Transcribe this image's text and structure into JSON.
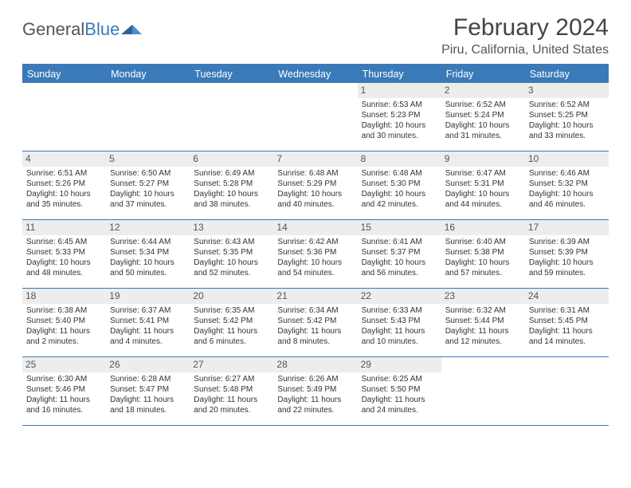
{
  "logo": {
    "text1": "General",
    "text2": "Blue"
  },
  "title": "February 2024",
  "subtitle": "Piru, California, United States",
  "colors": {
    "accent": "#3a7ab8",
    "daynum_bg": "#ededed",
    "text": "#333333"
  },
  "days_of_week": [
    "Sunday",
    "Monday",
    "Tuesday",
    "Wednesday",
    "Thursday",
    "Friday",
    "Saturday"
  ],
  "weeks": [
    [
      null,
      null,
      null,
      null,
      {
        "n": "1",
        "sr": "Sunrise: 6:53 AM",
        "ss": "Sunset: 5:23 PM",
        "d1": "Daylight: 10 hours",
        "d2": "and 30 minutes."
      },
      {
        "n": "2",
        "sr": "Sunrise: 6:52 AM",
        "ss": "Sunset: 5:24 PM",
        "d1": "Daylight: 10 hours",
        "d2": "and 31 minutes."
      },
      {
        "n": "3",
        "sr": "Sunrise: 6:52 AM",
        "ss": "Sunset: 5:25 PM",
        "d1": "Daylight: 10 hours",
        "d2": "and 33 minutes."
      }
    ],
    [
      {
        "n": "4",
        "sr": "Sunrise: 6:51 AM",
        "ss": "Sunset: 5:26 PM",
        "d1": "Daylight: 10 hours",
        "d2": "and 35 minutes."
      },
      {
        "n": "5",
        "sr": "Sunrise: 6:50 AM",
        "ss": "Sunset: 5:27 PM",
        "d1": "Daylight: 10 hours",
        "d2": "and 37 minutes."
      },
      {
        "n": "6",
        "sr": "Sunrise: 6:49 AM",
        "ss": "Sunset: 5:28 PM",
        "d1": "Daylight: 10 hours",
        "d2": "and 38 minutes."
      },
      {
        "n": "7",
        "sr": "Sunrise: 6:48 AM",
        "ss": "Sunset: 5:29 PM",
        "d1": "Daylight: 10 hours",
        "d2": "and 40 minutes."
      },
      {
        "n": "8",
        "sr": "Sunrise: 6:48 AM",
        "ss": "Sunset: 5:30 PM",
        "d1": "Daylight: 10 hours",
        "d2": "and 42 minutes."
      },
      {
        "n": "9",
        "sr": "Sunrise: 6:47 AM",
        "ss": "Sunset: 5:31 PM",
        "d1": "Daylight: 10 hours",
        "d2": "and 44 minutes."
      },
      {
        "n": "10",
        "sr": "Sunrise: 6:46 AM",
        "ss": "Sunset: 5:32 PM",
        "d1": "Daylight: 10 hours",
        "d2": "and 46 minutes."
      }
    ],
    [
      {
        "n": "11",
        "sr": "Sunrise: 6:45 AM",
        "ss": "Sunset: 5:33 PM",
        "d1": "Daylight: 10 hours",
        "d2": "and 48 minutes."
      },
      {
        "n": "12",
        "sr": "Sunrise: 6:44 AM",
        "ss": "Sunset: 5:34 PM",
        "d1": "Daylight: 10 hours",
        "d2": "and 50 minutes."
      },
      {
        "n": "13",
        "sr": "Sunrise: 6:43 AM",
        "ss": "Sunset: 5:35 PM",
        "d1": "Daylight: 10 hours",
        "d2": "and 52 minutes."
      },
      {
        "n": "14",
        "sr": "Sunrise: 6:42 AM",
        "ss": "Sunset: 5:36 PM",
        "d1": "Daylight: 10 hours",
        "d2": "and 54 minutes."
      },
      {
        "n": "15",
        "sr": "Sunrise: 6:41 AM",
        "ss": "Sunset: 5:37 PM",
        "d1": "Daylight: 10 hours",
        "d2": "and 56 minutes."
      },
      {
        "n": "16",
        "sr": "Sunrise: 6:40 AM",
        "ss": "Sunset: 5:38 PM",
        "d1": "Daylight: 10 hours",
        "d2": "and 57 minutes."
      },
      {
        "n": "17",
        "sr": "Sunrise: 6:39 AM",
        "ss": "Sunset: 5:39 PM",
        "d1": "Daylight: 10 hours",
        "d2": "and 59 minutes."
      }
    ],
    [
      {
        "n": "18",
        "sr": "Sunrise: 6:38 AM",
        "ss": "Sunset: 5:40 PM",
        "d1": "Daylight: 11 hours",
        "d2": "and 2 minutes."
      },
      {
        "n": "19",
        "sr": "Sunrise: 6:37 AM",
        "ss": "Sunset: 5:41 PM",
        "d1": "Daylight: 11 hours",
        "d2": "and 4 minutes."
      },
      {
        "n": "20",
        "sr": "Sunrise: 6:35 AM",
        "ss": "Sunset: 5:42 PM",
        "d1": "Daylight: 11 hours",
        "d2": "and 6 minutes."
      },
      {
        "n": "21",
        "sr": "Sunrise: 6:34 AM",
        "ss": "Sunset: 5:42 PM",
        "d1": "Daylight: 11 hours",
        "d2": "and 8 minutes."
      },
      {
        "n": "22",
        "sr": "Sunrise: 6:33 AM",
        "ss": "Sunset: 5:43 PM",
        "d1": "Daylight: 11 hours",
        "d2": "and 10 minutes."
      },
      {
        "n": "23",
        "sr": "Sunrise: 6:32 AM",
        "ss": "Sunset: 5:44 PM",
        "d1": "Daylight: 11 hours",
        "d2": "and 12 minutes."
      },
      {
        "n": "24",
        "sr": "Sunrise: 6:31 AM",
        "ss": "Sunset: 5:45 PM",
        "d1": "Daylight: 11 hours",
        "d2": "and 14 minutes."
      }
    ],
    [
      {
        "n": "25",
        "sr": "Sunrise: 6:30 AM",
        "ss": "Sunset: 5:46 PM",
        "d1": "Daylight: 11 hours",
        "d2": "and 16 minutes."
      },
      {
        "n": "26",
        "sr": "Sunrise: 6:28 AM",
        "ss": "Sunset: 5:47 PM",
        "d1": "Daylight: 11 hours",
        "d2": "and 18 minutes."
      },
      {
        "n": "27",
        "sr": "Sunrise: 6:27 AM",
        "ss": "Sunset: 5:48 PM",
        "d1": "Daylight: 11 hours",
        "d2": "and 20 minutes."
      },
      {
        "n": "28",
        "sr": "Sunrise: 6:26 AM",
        "ss": "Sunset: 5:49 PM",
        "d1": "Daylight: 11 hours",
        "d2": "and 22 minutes."
      },
      {
        "n": "29",
        "sr": "Sunrise: 6:25 AM",
        "ss": "Sunset: 5:50 PM",
        "d1": "Daylight: 11 hours",
        "d2": "and 24 minutes."
      },
      null,
      null
    ]
  ]
}
